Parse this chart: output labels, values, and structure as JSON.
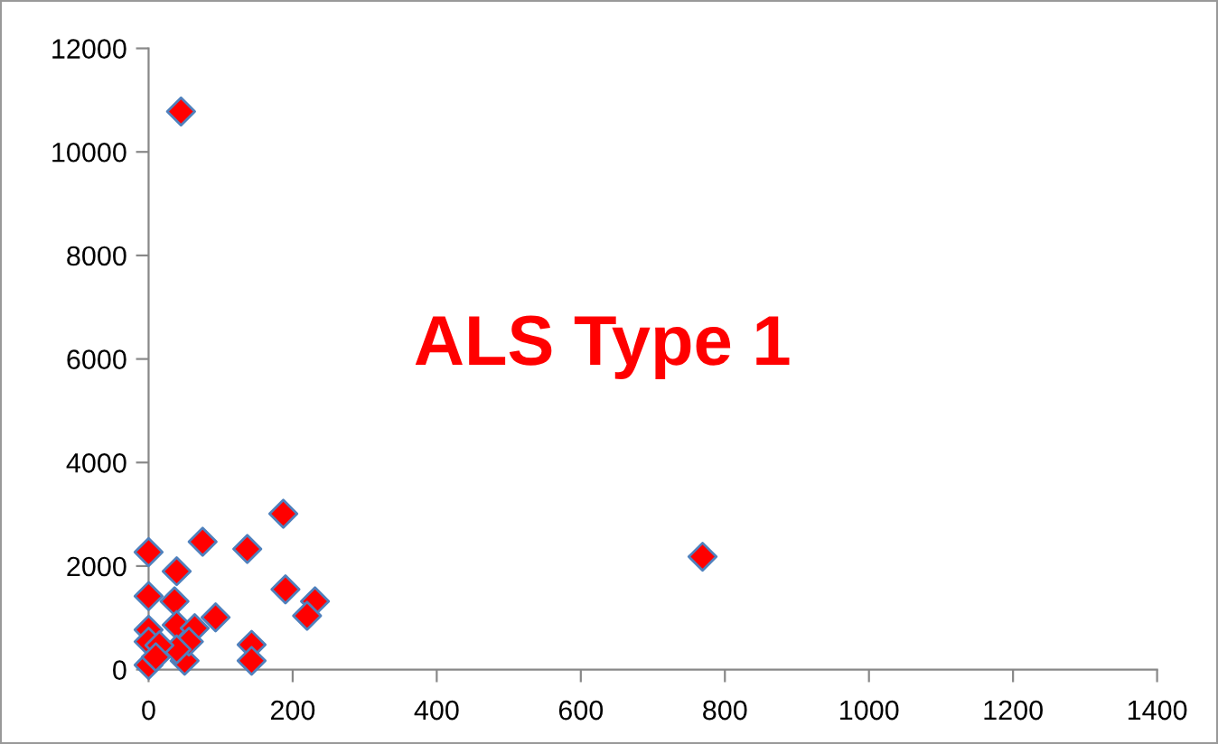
{
  "chart_data": {
    "type": "scatter",
    "annotations": [
      "ALS Type 1"
    ],
    "x": [
      45,
      769,
      187,
      75,
      137,
      0,
      39,
      190,
      231,
      220,
      93,
      0,
      36,
      39,
      64,
      143,
      143,
      50,
      56,
      39,
      0,
      0,
      0,
      15,
      10
    ],
    "series": [
      {
        "color": "#ff0000",
        "values": [
          10780,
          2180,
          3010,
          2470,
          2330,
          2270,
          1900,
          1550,
          1320,
          1040,
          1010,
          1420,
          1320,
          860,
          800,
          480,
          170,
          170,
          540,
          390,
          770,
          540,
          90,
          470,
          240
        ]
      }
    ],
    "xlim": [
      0,
      1400
    ],
    "xticks": [
      0,
      200,
      400,
      600,
      800,
      1000,
      1200,
      1400
    ],
    "ylim": [
      0,
      12000
    ],
    "yticks": [
      0,
      2000,
      4000,
      6000,
      8000,
      10000,
      12000
    ],
    "marker": "diamond",
    "grid": false,
    "legend": false
  }
}
